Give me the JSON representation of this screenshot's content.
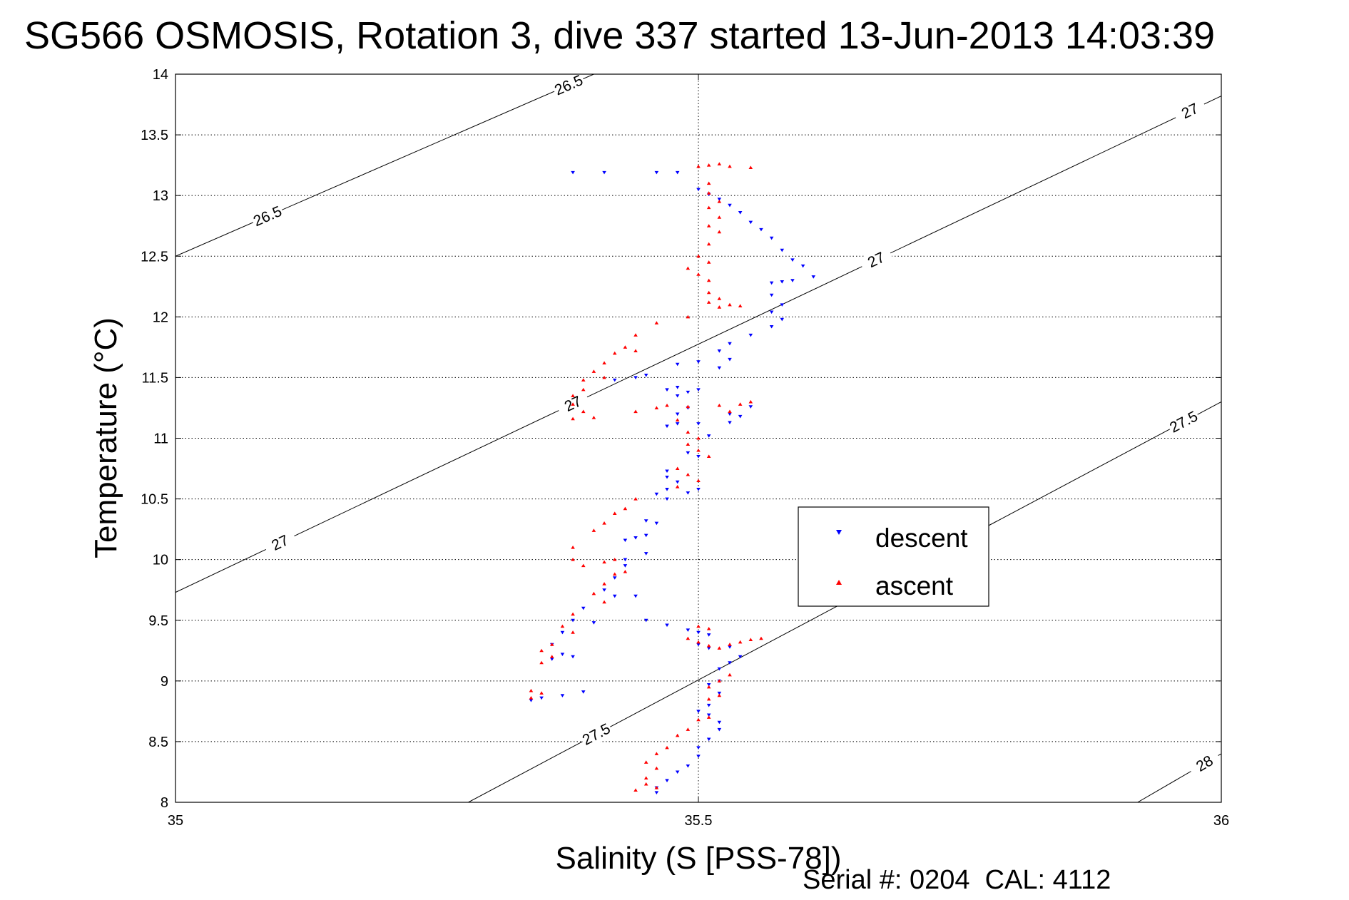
{
  "chart_data": {
    "type": "scatter",
    "title": "SG566 OSMOSIS, Rotation 3, dive 337 started 13-Jun-2013 14:03:39",
    "xlabel": "Salinity (S [PSS-78])",
    "ylabel": "Temperature (°C)",
    "xlim": [
      35,
      36
    ],
    "ylim": [
      8,
      14
    ],
    "xticks": [
      "35",
      "35.5",
      "36"
    ],
    "yticks": [
      "8",
      "8.5",
      "9",
      "9.5",
      "10",
      "10.5",
      "11",
      "11.5",
      "12",
      "12.5",
      "13",
      "13.5",
      "14"
    ],
    "grid": true,
    "legend": {
      "placement": "lower-right-center"
    },
    "footer": "Serial #: 0204  CAL: 4112",
    "density_contours": [
      {
        "label": "26.5",
        "x": [
          35,
          35.4
        ],
        "y": [
          12.5,
          14
        ]
      },
      {
        "label": "27",
        "x": [
          35,
          36
        ],
        "y": [
          9.73,
          13.82
        ]
      },
      {
        "label": "27.5",
        "x": [
          35.28,
          36
        ],
        "y": [
          8,
          11.3
        ]
      },
      {
        "label": "28",
        "x": [
          35.92,
          36
        ],
        "y": [
          8,
          8.4
        ]
      }
    ],
    "series": [
      {
        "name": "descent",
        "color": "#0000ff",
        "marker": "triangle-down",
        "points": [
          [
            35.38,
            13.19
          ],
          [
            35.41,
            13.19
          ],
          [
            35.46,
            13.19
          ],
          [
            35.48,
            13.19
          ],
          [
            35.5,
            13.05
          ],
          [
            35.51,
            13.01
          ],
          [
            35.52,
            12.97
          ],
          [
            35.53,
            12.92
          ],
          [
            35.54,
            12.86
          ],
          [
            35.55,
            12.78
          ],
          [
            35.56,
            12.72
          ],
          [
            35.57,
            12.65
          ],
          [
            35.58,
            12.55
          ],
          [
            35.59,
            12.47
          ],
          [
            35.57,
            12.28
          ],
          [
            35.58,
            12.29
          ],
          [
            35.59,
            12.3
          ],
          [
            35.61,
            12.33
          ],
          [
            35.6,
            12.42
          ],
          [
            35.57,
            12.18
          ],
          [
            35.58,
            12.1
          ],
          [
            35.57,
            12.04
          ],
          [
            35.58,
            11.98
          ],
          [
            35.57,
            11.92
          ],
          [
            35.55,
            11.85
          ],
          [
            35.53,
            11.78
          ],
          [
            35.52,
            11.72
          ],
          [
            35.53,
            11.65
          ],
          [
            35.52,
            11.58
          ],
          [
            35.5,
            11.63
          ],
          [
            35.48,
            11.61
          ],
          [
            35.45,
            11.52
          ],
          [
            35.44,
            11.5
          ],
          [
            35.42,
            11.48
          ],
          [
            35.48,
            11.42
          ],
          [
            35.49,
            11.38
          ],
          [
            35.48,
            11.35
          ],
          [
            35.5,
            11.4
          ],
          [
            35.47,
            11.4
          ],
          [
            35.49,
            11.25
          ],
          [
            35.48,
            11.2
          ],
          [
            35.48,
            11.12
          ],
          [
            35.47,
            11.1
          ],
          [
            35.5,
            11.12
          ],
          [
            35.51,
            11.02
          ],
          [
            35.53,
            11.13
          ],
          [
            35.54,
            11.18
          ],
          [
            35.53,
            11.2
          ],
          [
            35.55,
            11.26
          ],
          [
            35.49,
            10.88
          ],
          [
            35.5,
            10.85
          ],
          [
            35.47,
            10.73
          ],
          [
            35.47,
            10.68
          ],
          [
            35.48,
            10.64
          ],
          [
            35.47,
            10.58
          ],
          [
            35.46,
            10.54
          ],
          [
            35.47,
            10.5
          ],
          [
            35.5,
            10.58
          ],
          [
            35.49,
            10.55
          ],
          [
            35.45,
            10.32
          ],
          [
            35.46,
            10.3
          ],
          [
            35.45,
            10.2
          ],
          [
            35.44,
            10.18
          ],
          [
            35.43,
            10.16
          ],
          [
            35.45,
            10.05
          ],
          [
            35.43,
            10.0
          ],
          [
            35.43,
            9.95
          ],
          [
            35.42,
            9.85
          ],
          [
            35.41,
            9.75
          ],
          [
            35.42,
            9.7
          ],
          [
            35.44,
            9.7
          ],
          [
            35.39,
            9.6
          ],
          [
            35.38,
            9.5
          ],
          [
            35.4,
            9.48
          ],
          [
            35.37,
            9.4
          ],
          [
            35.36,
            9.3
          ],
          [
            35.37,
            9.22
          ],
          [
            35.38,
            9.2
          ],
          [
            35.36,
            9.18
          ],
          [
            35.34,
            8.84
          ],
          [
            35.35,
            8.86
          ],
          [
            35.37,
            8.88
          ],
          [
            35.39,
            8.91
          ],
          [
            35.45,
            9.5
          ],
          [
            35.47,
            9.46
          ],
          [
            35.49,
            9.42
          ],
          [
            35.5,
            9.4
          ],
          [
            35.51,
            9.38
          ],
          [
            35.5,
            9.3
          ],
          [
            35.51,
            9.27
          ],
          [
            35.53,
            9.28
          ],
          [
            35.54,
            9.2
          ],
          [
            35.53,
            9.15
          ],
          [
            35.52,
            9.1
          ],
          [
            35.52,
            9.0
          ],
          [
            35.51,
            8.97
          ],
          [
            35.52,
            8.9
          ],
          [
            35.51,
            8.8
          ],
          [
            35.5,
            8.75
          ],
          [
            35.51,
            8.72
          ],
          [
            35.52,
            8.66
          ],
          [
            35.52,
            8.6
          ],
          [
            35.51,
            8.52
          ],
          [
            35.5,
            8.45
          ],
          [
            35.5,
            8.38
          ],
          [
            35.49,
            8.3
          ],
          [
            35.48,
            8.25
          ],
          [
            35.47,
            8.18
          ],
          [
            35.46,
            8.12
          ],
          [
            35.46,
            8.08
          ]
        ]
      },
      {
        "name": "ascent",
        "color": "#ff0000",
        "marker": "triangle-up",
        "points": [
          [
            35.5,
            13.24
          ],
          [
            35.51,
            13.25
          ],
          [
            35.52,
            13.26
          ],
          [
            35.53,
            13.24
          ],
          [
            35.55,
            13.23
          ],
          [
            35.51,
            13.1
          ],
          [
            35.51,
            13.02
          ],
          [
            35.52,
            12.95
          ],
          [
            35.51,
            12.9
          ],
          [
            35.52,
            12.82
          ],
          [
            35.51,
            12.75
          ],
          [
            35.52,
            12.7
          ],
          [
            35.51,
            12.6
          ],
          [
            35.5,
            12.5
          ],
          [
            35.51,
            12.45
          ],
          [
            35.49,
            12.4
          ],
          [
            35.5,
            12.35
          ],
          [
            35.51,
            12.3
          ],
          [
            35.51,
            12.2
          ],
          [
            35.52,
            12.15
          ],
          [
            35.51,
            12.12
          ],
          [
            35.52,
            12.08
          ],
          [
            35.53,
            12.1
          ],
          [
            35.54,
            12.09
          ],
          [
            35.49,
            12.0
          ],
          [
            35.46,
            11.95
          ],
          [
            35.44,
            11.85
          ],
          [
            35.43,
            11.75
          ],
          [
            35.42,
            11.7
          ],
          [
            35.44,
            11.72
          ],
          [
            35.41,
            11.62
          ],
          [
            35.4,
            11.55
          ],
          [
            35.39,
            11.48
          ],
          [
            35.41,
            11.5
          ],
          [
            35.39,
            11.4
          ],
          [
            35.38,
            11.35
          ],
          [
            35.38,
            11.28
          ],
          [
            35.39,
            11.22
          ],
          [
            35.38,
            11.16
          ],
          [
            35.4,
            11.17
          ],
          [
            35.44,
            11.22
          ],
          [
            35.46,
            11.25
          ],
          [
            35.47,
            11.27
          ],
          [
            35.49,
            11.26
          ],
          [
            35.52,
            11.27
          ],
          [
            35.54,
            11.28
          ],
          [
            35.55,
            11.3
          ],
          [
            35.53,
            11.22
          ],
          [
            35.48,
            11.15
          ],
          [
            35.49,
            11.05
          ],
          [
            35.5,
            11.0
          ],
          [
            35.49,
            10.95
          ],
          [
            35.5,
            10.9
          ],
          [
            35.51,
            10.85
          ],
          [
            35.48,
            10.75
          ],
          [
            35.49,
            10.7
          ],
          [
            35.5,
            10.65
          ],
          [
            35.48,
            10.6
          ],
          [
            35.44,
            10.5
          ],
          [
            35.43,
            10.42
          ],
          [
            35.42,
            10.38
          ],
          [
            35.41,
            10.3
          ],
          [
            35.4,
            10.24
          ],
          [
            35.38,
            10.1
          ],
          [
            35.38,
            10.0
          ],
          [
            35.39,
            9.95
          ],
          [
            35.41,
            9.98
          ],
          [
            35.42,
            10.0
          ],
          [
            35.42,
            9.88
          ],
          [
            35.43,
            9.9
          ],
          [
            35.41,
            9.8
          ],
          [
            35.4,
            9.72
          ],
          [
            35.41,
            9.65
          ],
          [
            35.38,
            9.55
          ],
          [
            35.37,
            9.45
          ],
          [
            35.38,
            9.4
          ],
          [
            35.36,
            9.3
          ],
          [
            35.35,
            9.25
          ],
          [
            35.36,
            9.2
          ],
          [
            35.35,
            9.15
          ],
          [
            35.34,
            8.92
          ],
          [
            35.35,
            8.9
          ],
          [
            35.34,
            8.86
          ],
          [
            35.5,
            9.45
          ],
          [
            35.51,
            9.43
          ],
          [
            35.49,
            9.35
          ],
          [
            35.5,
            9.32
          ],
          [
            35.51,
            9.29
          ],
          [
            35.52,
            9.27
          ],
          [
            35.53,
            9.3
          ],
          [
            35.54,
            9.32
          ],
          [
            35.55,
            9.34
          ],
          [
            35.56,
            9.35
          ],
          [
            35.53,
            9.05
          ],
          [
            35.52,
            9.0
          ],
          [
            35.51,
            8.95
          ],
          [
            35.52,
            8.88
          ],
          [
            35.51,
            8.85
          ],
          [
            35.51,
            8.7
          ],
          [
            35.5,
            8.68
          ],
          [
            35.49,
            8.6
          ],
          [
            35.48,
            8.55
          ],
          [
            35.47,
            8.45
          ],
          [
            35.46,
            8.4
          ],
          [
            35.45,
            8.33
          ],
          [
            35.46,
            8.28
          ],
          [
            35.45,
            8.2
          ],
          [
            35.45,
            8.15
          ],
          [
            35.44,
            8.1
          ],
          [
            35.46,
            8.12
          ]
        ]
      }
    ]
  }
}
